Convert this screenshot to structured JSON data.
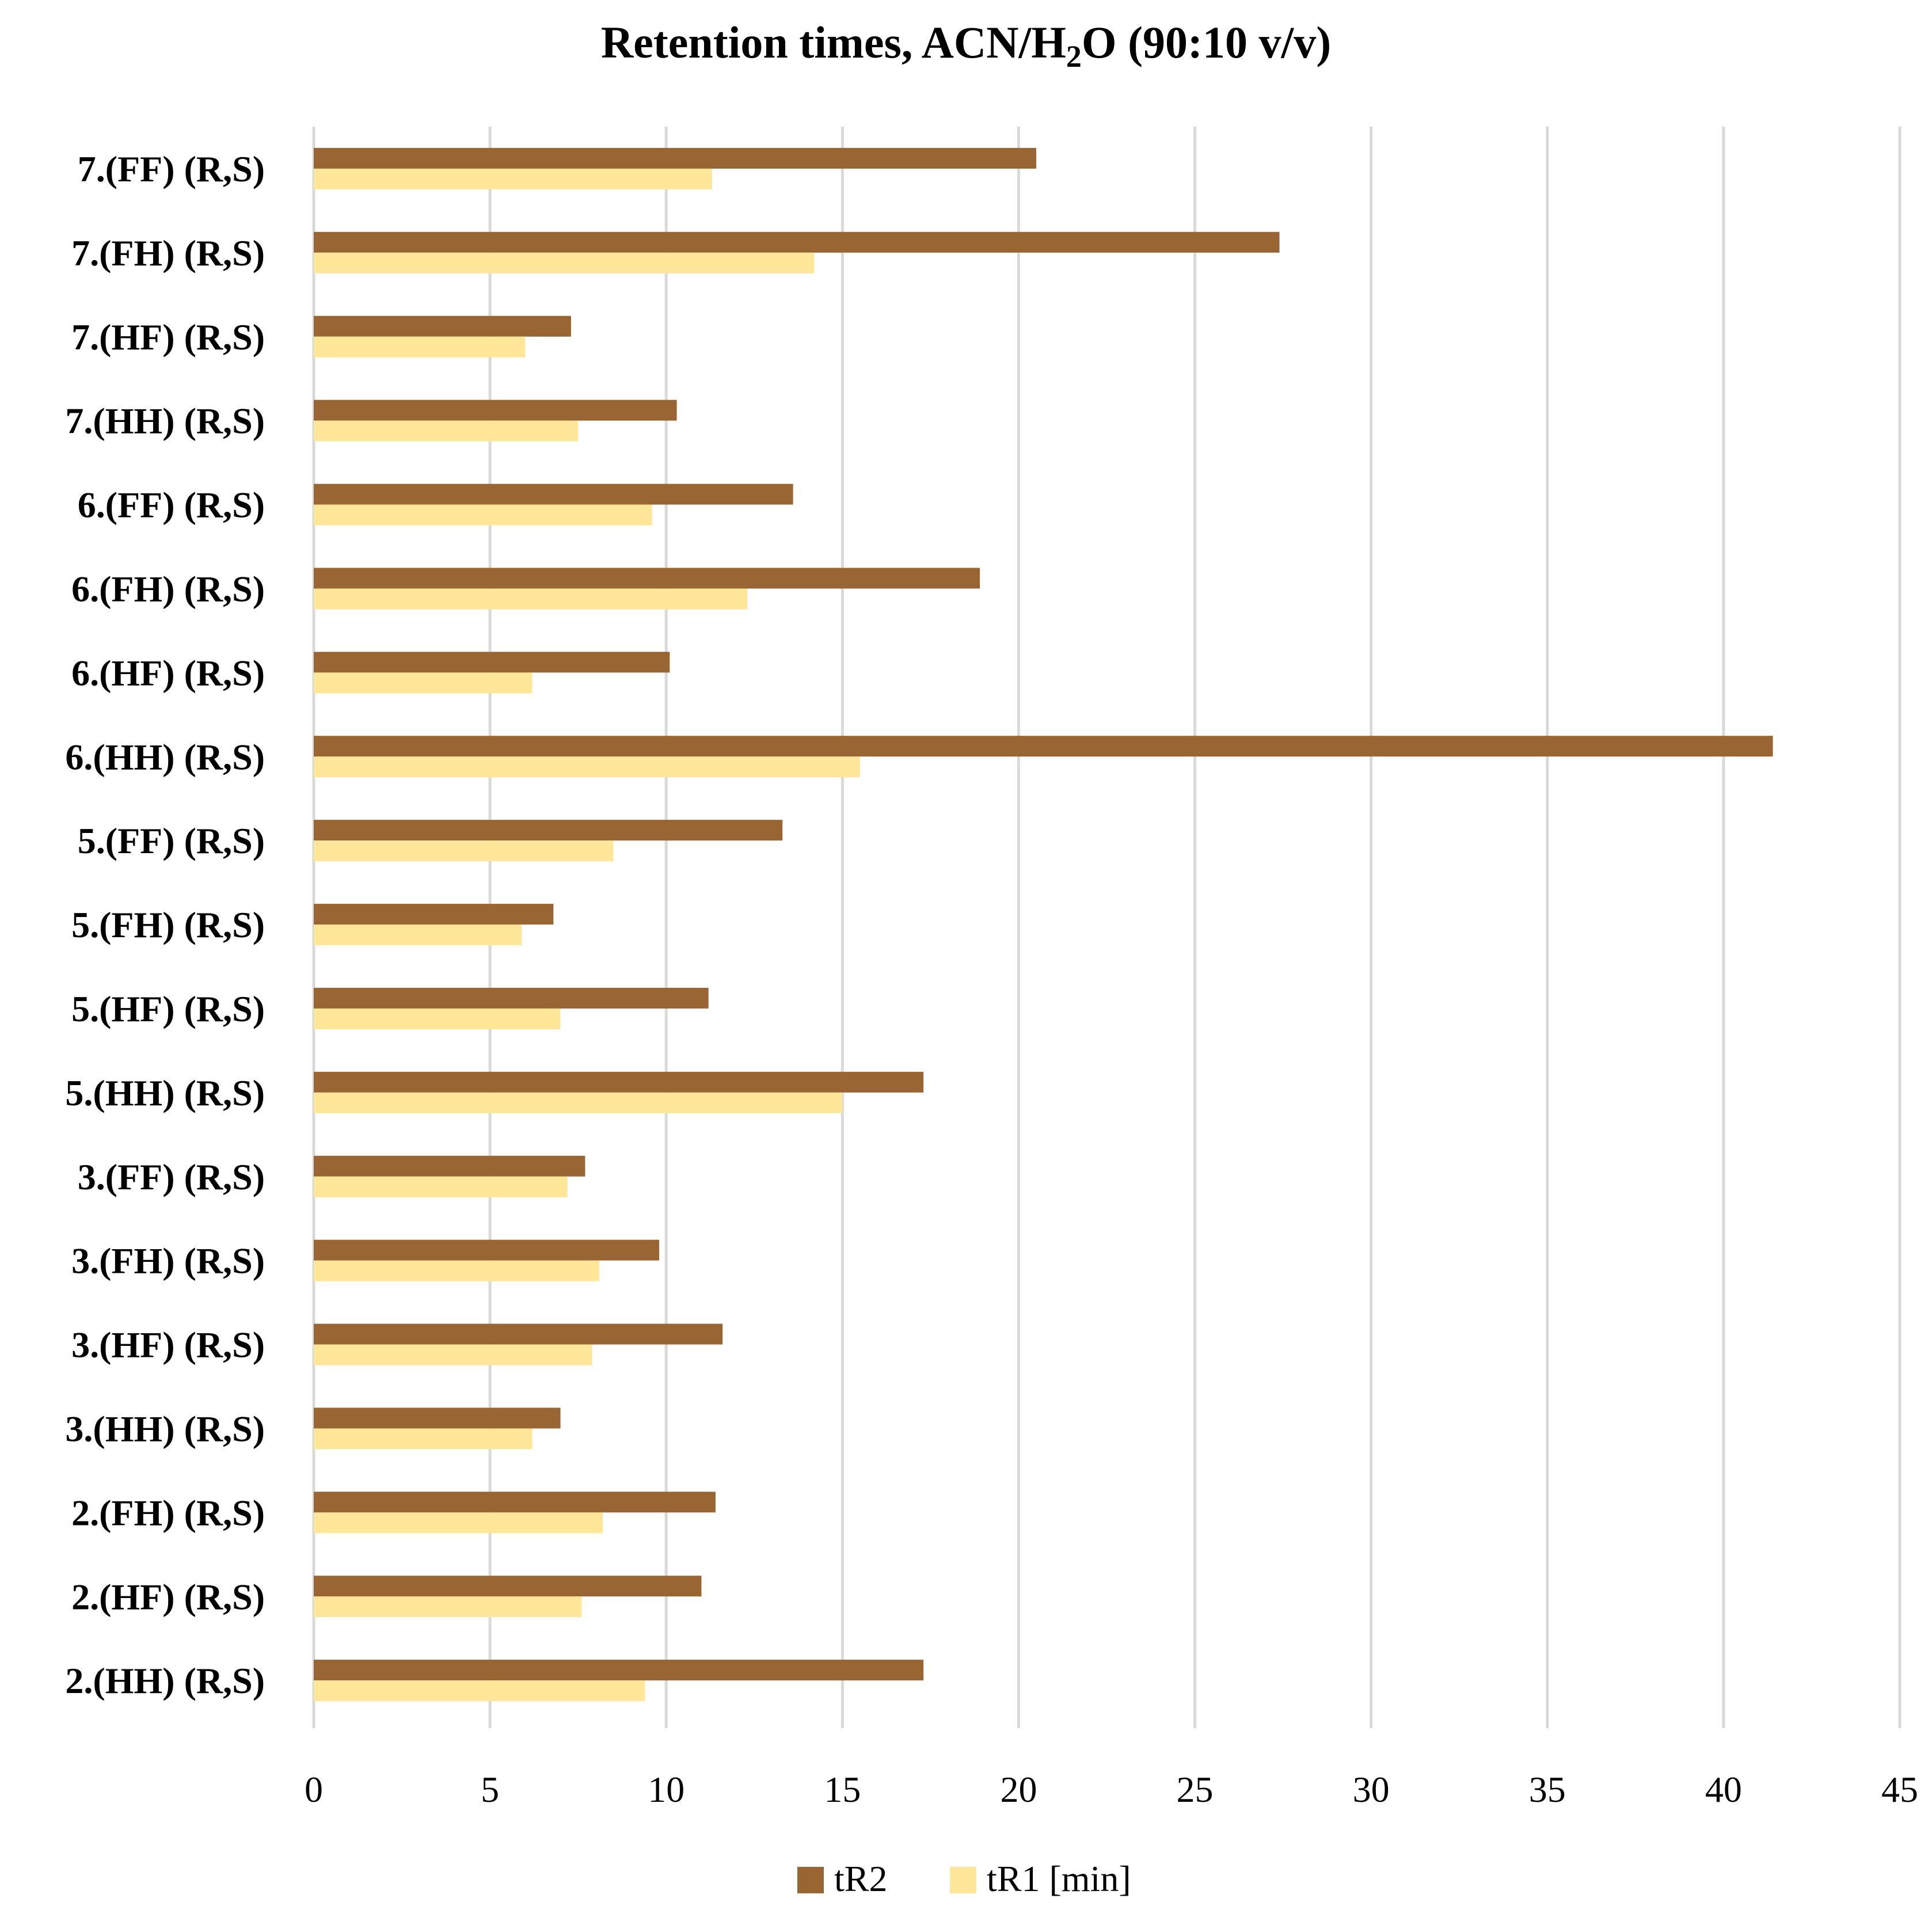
{
  "chart_data": {
    "type": "bar",
    "orientation": "horizontal",
    "title": {
      "before_sub": "Retention times, ACN/H",
      "sub": "2",
      "after_sub": "O (90:10 v/v)"
    },
    "xlabel": "",
    "ylabel": "",
    "xlim": [
      0,
      45
    ],
    "x_ticks": [
      "0",
      "5",
      "10",
      "15",
      "20",
      "25",
      "30",
      "35",
      "40",
      "45"
    ],
    "grid": "vertical",
    "legend_position": "bottom",
    "categories": [
      "7.(FF) (R,S)",
      "7.(FH) (R,S)",
      "7.(HF) (R,S)",
      "7.(HH) (R,S)",
      "6.(FF) (R,S)",
      "6.(FH) (R,S)",
      "6.(HF) (R,S)",
      "6.(HH) (R,S)",
      "5.(FF) (R,S)",
      "5.(FH) (R,S)",
      "5.(HF) (R,S)",
      "5.(HH) (R,S)",
      "3.(FF) (R,S)",
      "3.(FH) (R,S)",
      "3.(HF) (R,S)",
      "3.(HH) (R,S)",
      "2.(FH) (R,S)",
      "2.(HF) (R,S)",
      "2.(HH) (R,S)"
    ],
    "series": [
      {
        "name": "tR2",
        "color": "#996633",
        "values": [
          20.5,
          27.4,
          7.3,
          10.3,
          13.6,
          18.9,
          10.1,
          41.4,
          13.3,
          6.8,
          11.2,
          17.3,
          7.7,
          9.8,
          11.6,
          7.0,
          11.4,
          11.0,
          17.3
        ]
      },
      {
        "name": "tR1 [min]",
        "color": "#ffe699",
        "values": [
          11.3,
          14.2,
          6.0,
          7.5,
          9.6,
          12.3,
          6.2,
          15.5,
          8.5,
          5.9,
          7.0,
          15.0,
          7.2,
          8.1,
          7.9,
          6.2,
          8.2,
          7.6,
          9.4
        ]
      }
    ]
  }
}
